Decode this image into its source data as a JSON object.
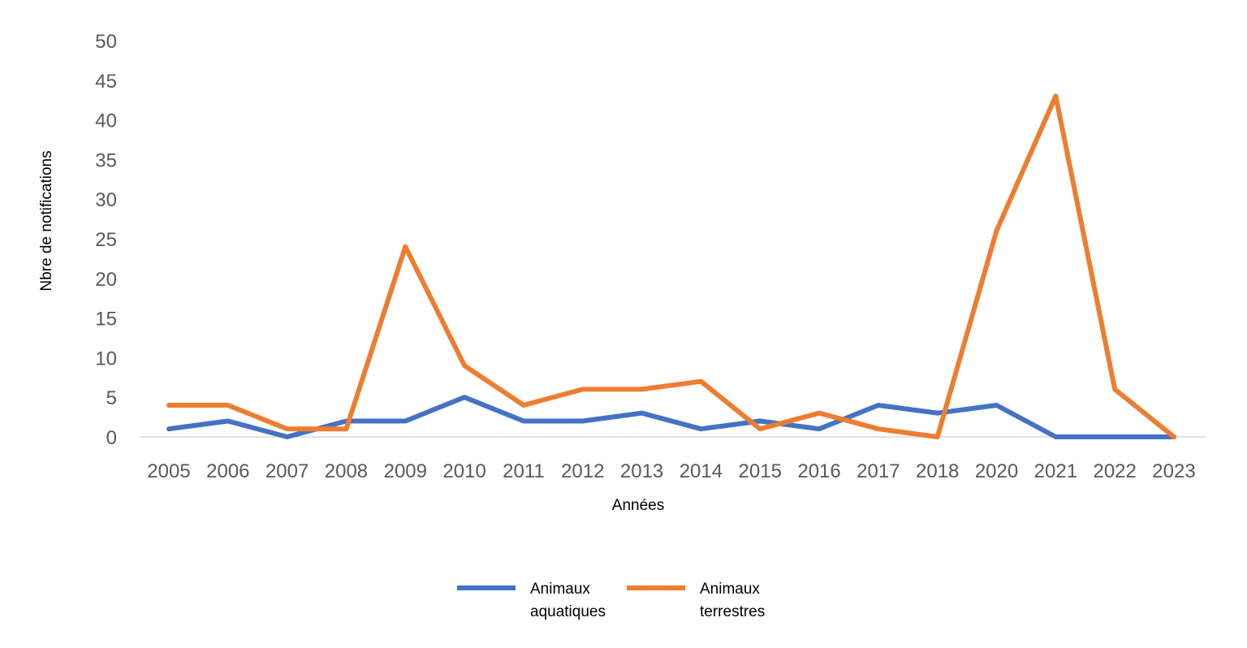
{
  "chart_data": {
    "type": "line",
    "title": "",
    "xlabel": "Années",
    "ylabel": "Nbre de notifications",
    "categories": [
      "2005",
      "2006",
      "2007",
      "2008",
      "2009",
      "2010",
      "2011",
      "2012",
      "2013",
      "2014",
      "2015",
      "2016",
      "2017",
      "2018",
      "2020",
      "2021",
      "2022",
      "2023"
    ],
    "ylim": [
      0,
      50
    ],
    "yticks": [
      0,
      5,
      10,
      15,
      20,
      25,
      30,
      35,
      40,
      45,
      50
    ],
    "grid": false,
    "legend_position": "bottom-center",
    "series": [
      {
        "name_lines": [
          "Animaux",
          "aquatiques"
        ],
        "color": "#4472C4",
        "values": [
          1,
          2,
          0,
          2,
          2,
          5,
          2,
          2,
          3,
          1,
          2,
          1,
          4,
          3,
          4,
          0,
          0,
          0
        ]
      },
      {
        "name_lines": [
          "Animaux",
          "terrestres"
        ],
        "color": "#ED7D31",
        "values": [
          4,
          4,
          1,
          1,
          24,
          9,
          4,
          6,
          6,
          7,
          1,
          3,
          1,
          0,
          26,
          43,
          6,
          0
        ]
      }
    ]
  }
}
